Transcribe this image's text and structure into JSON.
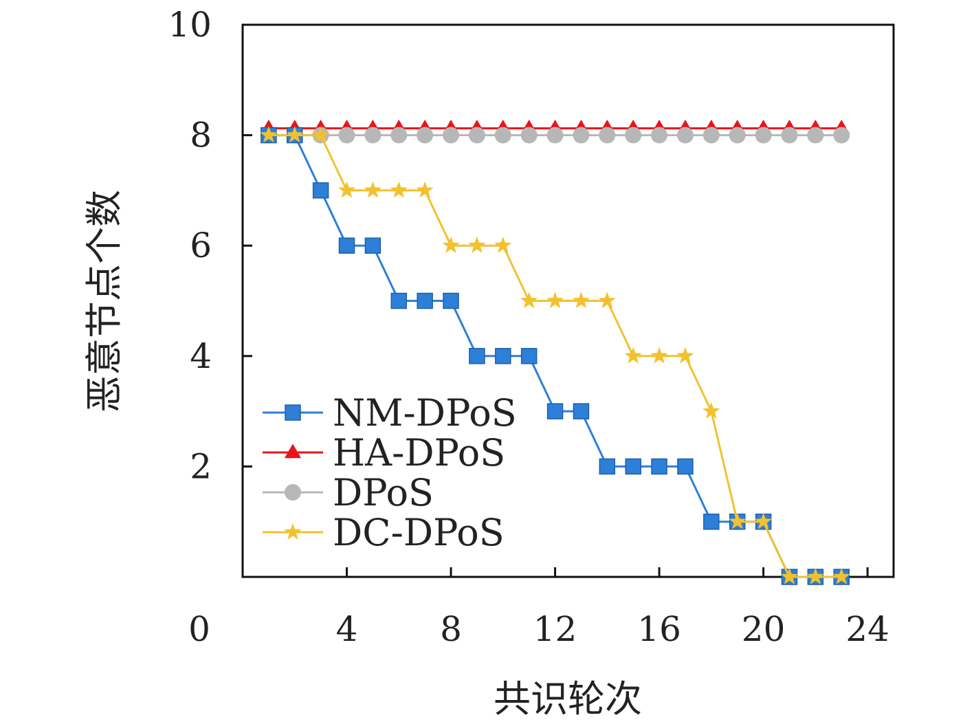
{
  "chart_data": {
    "type": "line",
    "title": "",
    "xlabel": "共识轮次",
    "ylabel": "恶意节点个数",
    "xlim": [
      0,
      25
    ],
    "ylim": [
      0,
      10
    ],
    "x_ticks": [
      4,
      8,
      12,
      16,
      20,
      24
    ],
    "y_ticks": [
      2,
      4,
      6,
      8,
      10
    ],
    "origin_label": "0",
    "grid": false,
    "legend_position": "bottom-left",
    "x": [
      1,
      2,
      3,
      4,
      5,
      6,
      7,
      8,
      9,
      10,
      11,
      12,
      13,
      14,
      15,
      16,
      17,
      18,
      19,
      20,
      21,
      22,
      23
    ],
    "series": [
      {
        "name": "NM-DPoS",
        "color": "#2d7fd8",
        "marker": "square",
        "step": true,
        "values": [
          8,
          8,
          7,
          6,
          6,
          5,
          5,
          5,
          4,
          4,
          4,
          3,
          3,
          2,
          2,
          2,
          2,
          1,
          1,
          1,
          0,
          0,
          0
        ]
      },
      {
        "name": "HA-DPoS",
        "color": "#e8141b",
        "marker": "triangle",
        "step": false,
        "values": [
          8,
          8,
          8,
          8,
          8,
          8,
          8,
          8,
          8,
          8,
          8,
          8,
          8,
          8,
          8,
          8,
          8,
          8,
          8,
          8,
          8,
          8,
          8
        ]
      },
      {
        "name": "DPoS",
        "color": "#b7b7b7",
        "marker": "circle",
        "step": false,
        "values": [
          8,
          8,
          8,
          8,
          8,
          8,
          8,
          8,
          8,
          8,
          8,
          8,
          8,
          8,
          8,
          8,
          8,
          8,
          8,
          8,
          8,
          8,
          8
        ]
      },
      {
        "name": "DC-DPoS",
        "color": "#f2c12e",
        "marker": "star",
        "step": true,
        "values": [
          8,
          8,
          8,
          7,
          7,
          7,
          7,
          6,
          6,
          6,
          5,
          5,
          5,
          5,
          4,
          4,
          4,
          3,
          1,
          1,
          0,
          0,
          0
        ]
      }
    ]
  }
}
